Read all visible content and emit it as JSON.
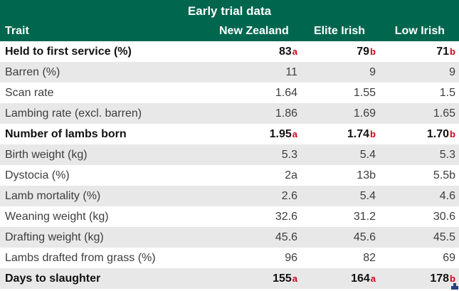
{
  "chart_data": {
    "type": "table",
    "title": "Early trial data",
    "columns": [
      "Trait",
      "New Zealand",
      "Elite Irish",
      "Low Irish"
    ],
    "rows": [
      {
        "trait": "Held to first service (%)",
        "bold": true,
        "values": [
          {
            "v": "83",
            "sig": "a"
          },
          {
            "v": "79",
            "sig": "b"
          },
          {
            "v": "71",
            "sig": "b"
          }
        ]
      },
      {
        "trait": "Barren (%)",
        "bold": false,
        "values": [
          {
            "v": "11"
          },
          {
            "v": "9"
          },
          {
            "v": "9"
          }
        ]
      },
      {
        "trait": "Scan rate",
        "bold": false,
        "values": [
          {
            "v": "1.64"
          },
          {
            "v": "1.55"
          },
          {
            "v": "1.5"
          }
        ]
      },
      {
        "trait": "Lambing rate (excl. barren)",
        "bold": false,
        "values": [
          {
            "v": "1.86"
          },
          {
            "v": "1.69"
          },
          {
            "v": "1.65"
          }
        ]
      },
      {
        "trait": "Number of lambs born",
        "bold": true,
        "values": [
          {
            "v": "1.95",
            "sig": "a"
          },
          {
            "v": "1.74",
            "sig": "b"
          },
          {
            "v": "1.70",
            "sig": "b"
          }
        ]
      },
      {
        "trait": "Birth weight (kg)",
        "bold": false,
        "values": [
          {
            "v": "5.3"
          },
          {
            "v": "5.4"
          },
          {
            "v": "5.3"
          }
        ]
      },
      {
        "trait": "Dystocia (%)",
        "bold": false,
        "values": [
          {
            "v": "2a"
          },
          {
            "v": "13b"
          },
          {
            "v": "5.5b"
          }
        ]
      },
      {
        "trait": "Lamb mortality (%)",
        "bold": false,
        "values": [
          {
            "v": "2.6"
          },
          {
            "v": "5.4"
          },
          {
            "v": "4.6"
          }
        ]
      },
      {
        "trait": "Weaning weight (kg)",
        "bold": false,
        "values": [
          {
            "v": "32.6"
          },
          {
            "v": "31.2"
          },
          {
            "v": "30.6"
          }
        ]
      },
      {
        "trait": "Drafting weight (kg)",
        "bold": false,
        "values": [
          {
            "v": "45.6"
          },
          {
            "v": "45.6"
          },
          {
            "v": "45.5"
          }
        ]
      },
      {
        "trait": "Lambs drafted from grass (%)",
        "bold": false,
        "values": [
          {
            "v": "96"
          },
          {
            "v": "82"
          },
          {
            "v": "69"
          }
        ]
      },
      {
        "trait": "Days to slaughter",
        "bold": true,
        "values": [
          {
            "v": "155",
            "sig": "a"
          },
          {
            "v": "164",
            "sig": "a"
          },
          {
            "v": "178",
            "sig": "b"
          }
        ]
      }
    ],
    "layout": {
      "striped": true,
      "value_alignment": "right"
    },
    "colors": {
      "header_green": "#00664e",
      "significance_red": "#d0021b",
      "stripe_gray": "#e8e8e8",
      "corner_mark_navy": "#27427c"
    }
  }
}
